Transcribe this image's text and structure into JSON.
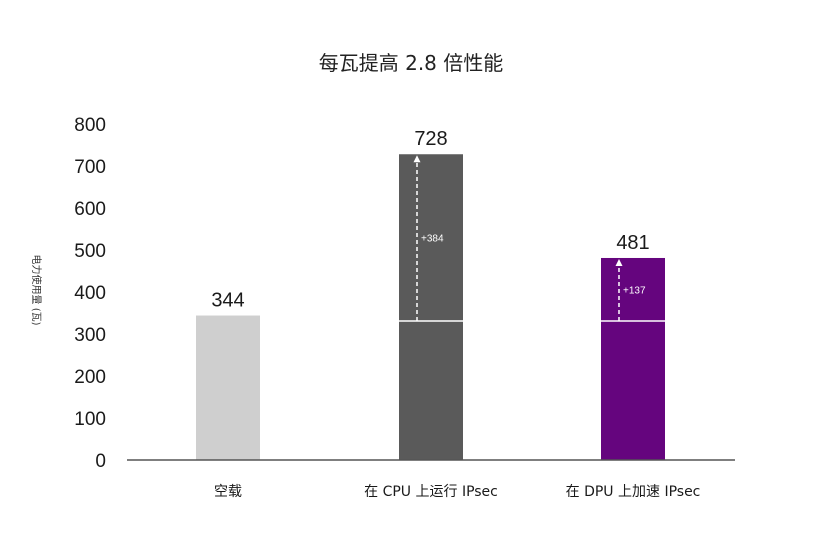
{
  "chart_data": {
    "type": "bar",
    "title": "每瓦提高 2.8 倍性能",
    "ylabel": "电力使用量 (瓦)",
    "xlabel": "",
    "categories": [
      "空载",
      "在 CPU 上运行 IPsec",
      "在 DPU 上加速 IPsec"
    ],
    "values": [
      344,
      728,
      481
    ],
    "value_labels": [
      "344",
      "728",
      "481"
    ],
    "baseline_marker": 331,
    "increments": [
      {
        "category_index": 1,
        "label": "+384"
      },
      {
        "category_index": 2,
        "label": "+137"
      }
    ],
    "colors": [
      "#cfcfcf",
      "#5a5a5a",
      "#65057e"
    ],
    "ylim": [
      0,
      800
    ],
    "yticks": [
      0,
      100,
      200,
      300,
      400,
      500,
      600,
      700,
      800
    ],
    "grid": false,
    "legend": "none"
  }
}
